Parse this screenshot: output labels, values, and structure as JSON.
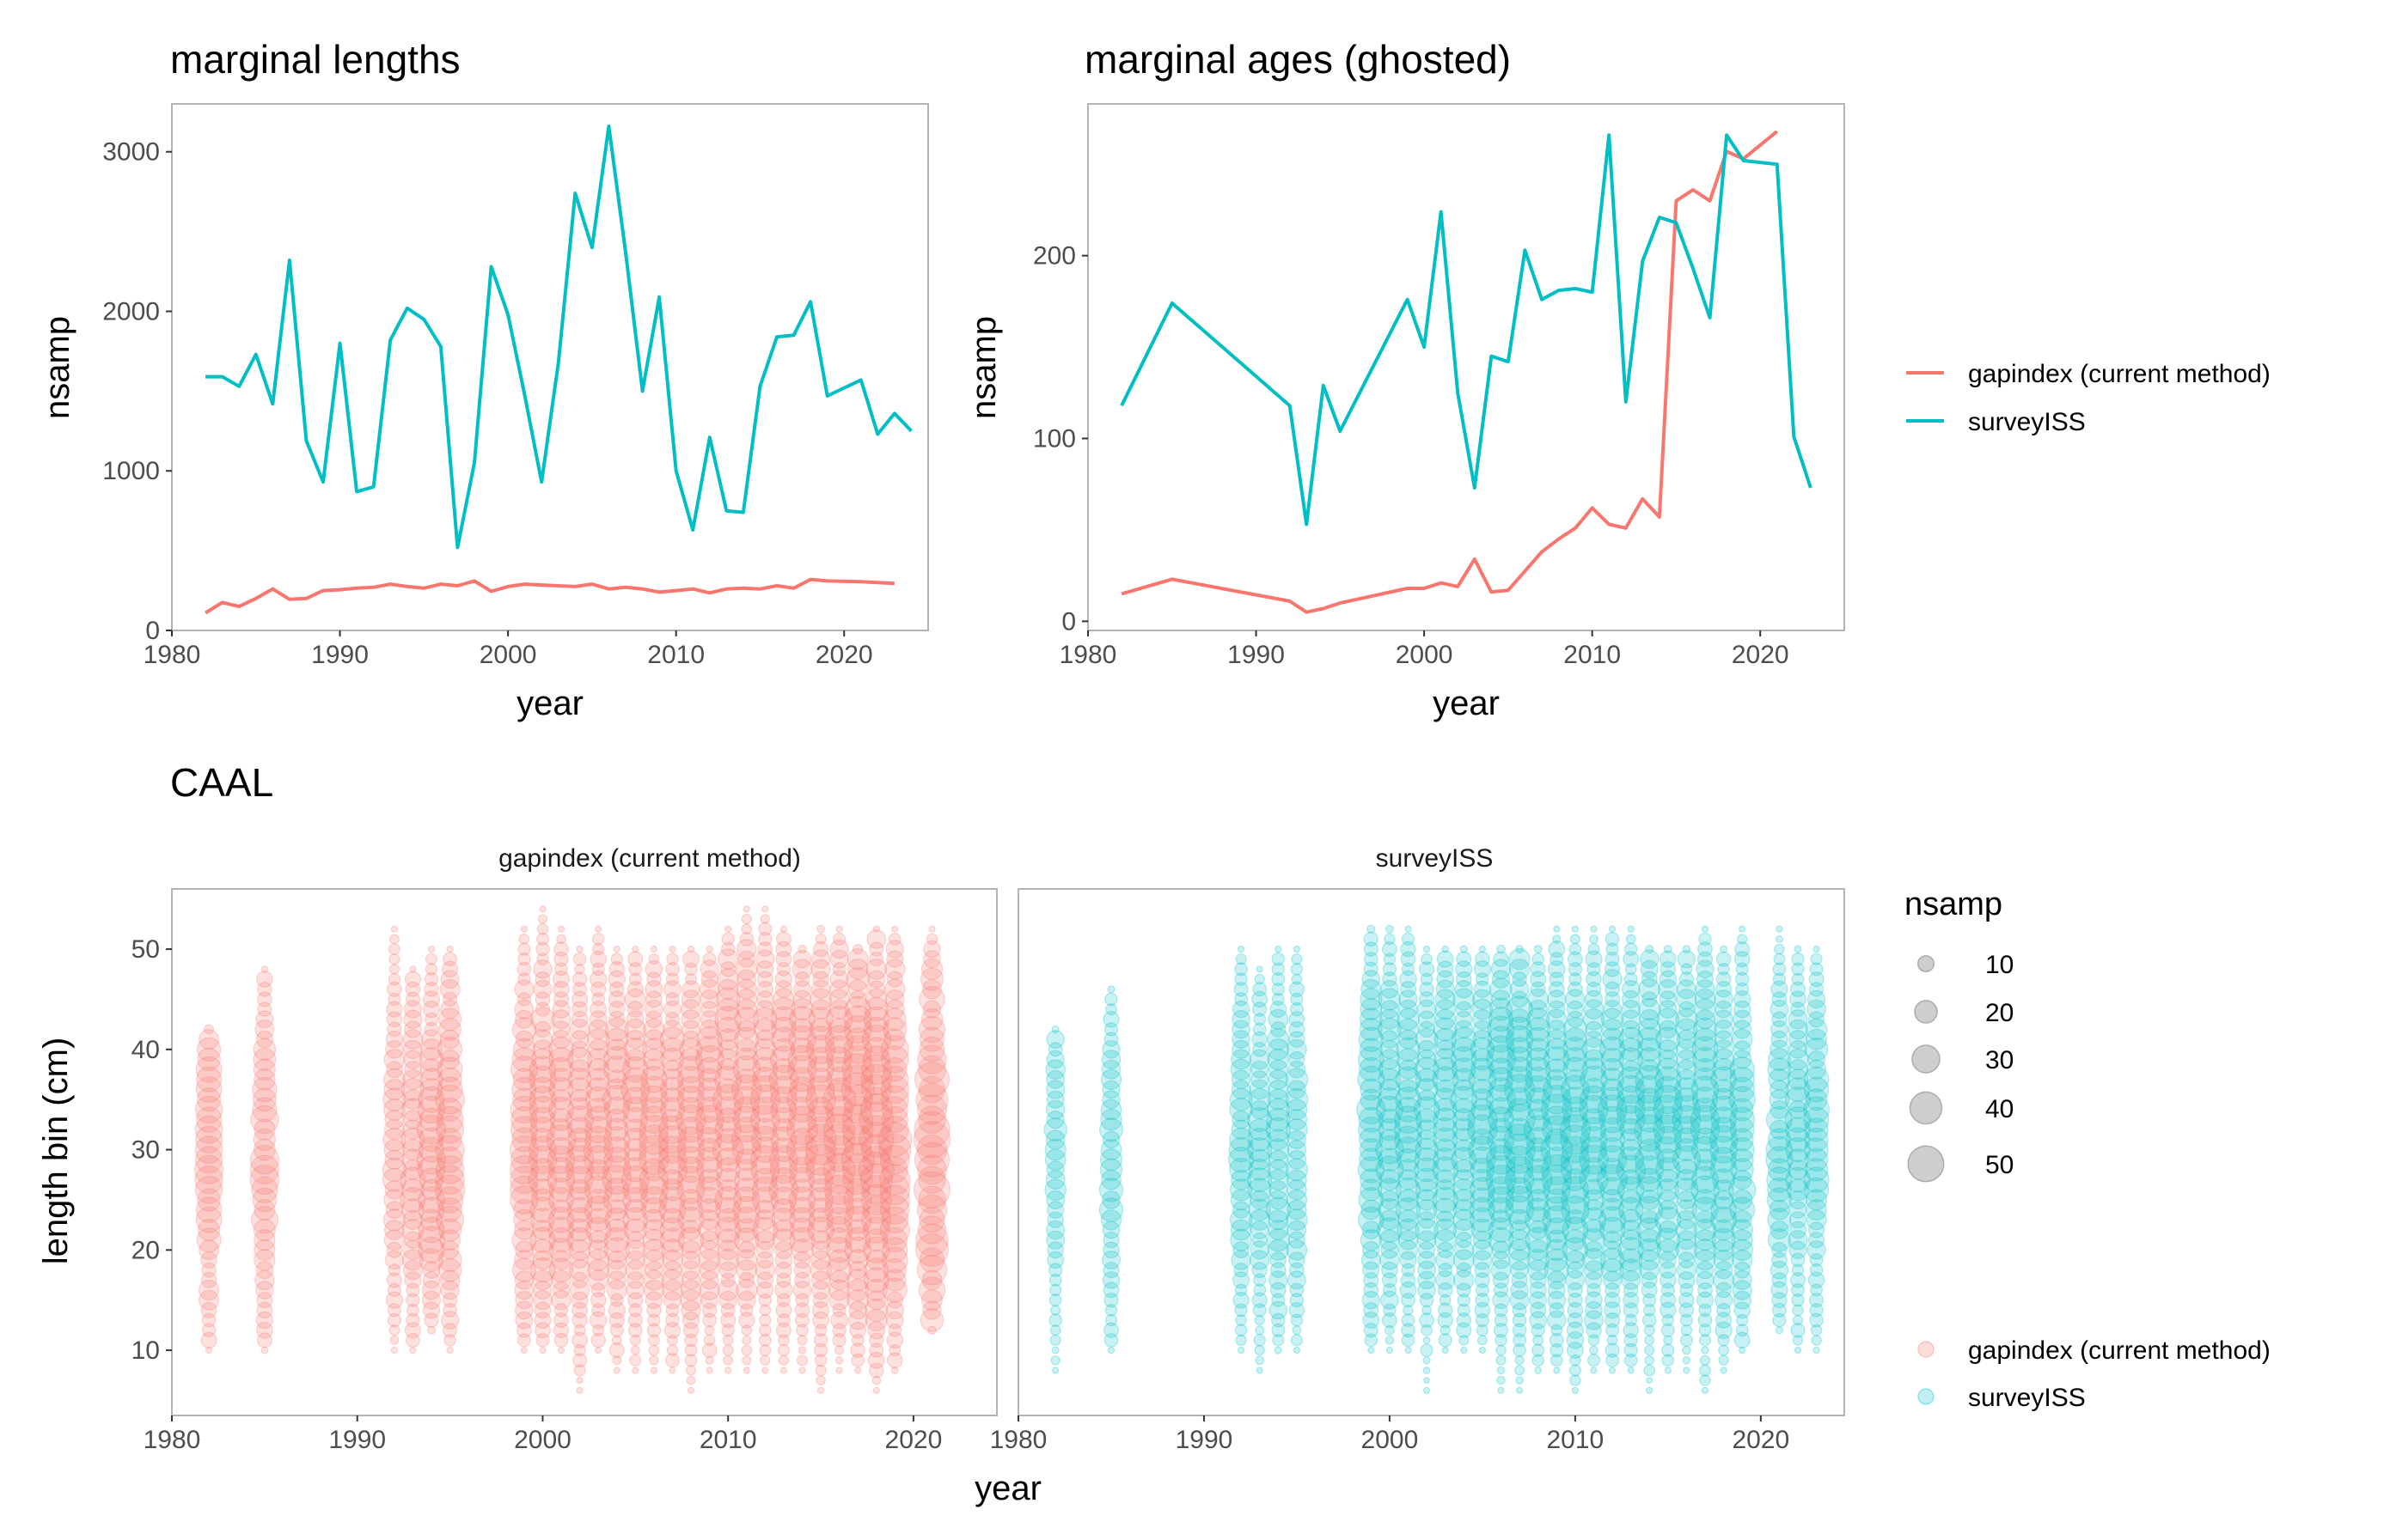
{
  "colors": {
    "gapindex": "#F8766D",
    "surveyISS": "#00BFC4"
  },
  "legend_lines": {
    "items": [
      {
        "key": "gapindex",
        "label": "gapindex (current method)"
      },
      {
        "key": "surveyISS",
        "label": "surveyISS"
      }
    ]
  },
  "legend_points": {
    "items": [
      {
        "key": "gapindex",
        "label": "gapindex (current method)"
      },
      {
        "key": "surveyISS",
        "label": "surveyISS"
      }
    ]
  },
  "legend_size": {
    "title": "nsamp",
    "levels": [
      10,
      20,
      30,
      40,
      50
    ]
  },
  "chart_data": [
    {
      "type": "line",
      "title": "marginal lengths",
      "xlabel": "year",
      "ylabel": "nsamp",
      "xlim": [
        1980,
        2025
      ],
      "ylim": [
        0,
        3300
      ],
      "xticks": [
        1980,
        1990,
        2000,
        2010,
        2020
      ],
      "yticks": [
        0,
        1000,
        2000,
        3000
      ],
      "series": [
        {
          "name": "gapindex (current method)",
          "key": "gapindex",
          "x": [
            1982,
            1983,
            1984,
            1985,
            1986,
            1987,
            1988,
            1989,
            1990,
            1991,
            1992,
            1993,
            1994,
            1995,
            1996,
            1997,
            1998,
            1999,
            2000,
            2001,
            2002,
            2003,
            2004,
            2005,
            2006,
            2007,
            2008,
            2009,
            2010,
            2011,
            2012,
            2013,
            2014,
            2015,
            2016,
            2017,
            2018,
            2019,
            2021,
            2022,
            2023
          ],
          "y": [
            110,
            175,
            150,
            200,
            260,
            195,
            200,
            250,
            255,
            265,
            270,
            290,
            275,
            265,
            290,
            280,
            310,
            245,
            275,
            290,
            285,
            280,
            275,
            290,
            260,
            270,
            260,
            240,
            250,
            260,
            235,
            260,
            265,
            260,
            280,
            265,
            320,
            310,
            305,
            300,
            295
          ]
        },
        {
          "name": "surveyISS",
          "key": "surveyISS",
          "x": [
            1982,
            1983,
            1984,
            1985,
            1986,
            1987,
            1988,
            1989,
            1990,
            1991,
            1992,
            1993,
            1994,
            1995,
            1996,
            1997,
            1998,
            1999,
            2000,
            2001,
            2002,
            2003,
            2004,
            2005,
            2006,
            2007,
            2008,
            2009,
            2010,
            2011,
            2012,
            2013,
            2014,
            2015,
            2016,
            2017,
            2018,
            2019,
            2021,
            2022,
            2023,
            2024
          ],
          "y": [
            1590,
            1590,
            1530,
            1730,
            1420,
            2320,
            1190,
            930,
            1800,
            870,
            900,
            1820,
            2020,
            1950,
            1780,
            520,
            1050,
            2280,
            1980,
            1470,
            930,
            1680,
            2740,
            2400,
            3160,
            2370,
            1500,
            2090,
            1000,
            630,
            1210,
            750,
            740,
            1530,
            1840,
            1850,
            2060,
            1470,
            1570,
            1230,
            1360,
            1250
          ]
        }
      ]
    },
    {
      "type": "line",
      "title": "marginal ages (ghosted)",
      "xlabel": "year",
      "ylabel": "nsamp",
      "xlim": [
        1980,
        2025
      ],
      "ylim": [
        -5,
        283
      ],
      "xticks": [
        1980,
        1990,
        2000,
        2010,
        2020
      ],
      "yticks": [
        0,
        100,
        200
      ],
      "series": [
        {
          "name": "gapindex (current method)",
          "key": "gapindex",
          "x": [
            1982,
            1985,
            1992,
            1993,
            1994,
            1995,
            1999,
            2000,
            2001,
            2002,
            2003,
            2004,
            2005,
            2007,
            2008,
            2009,
            2010,
            2011,
            2012,
            2013,
            2014,
            2015,
            2016,
            2017,
            2018,
            2019,
            2021
          ],
          "y": [
            15,
            23,
            11,
            5,
            7,
            10,
            18,
            18,
            21,
            19,
            34,
            16,
            17,
            38,
            45,
            51,
            62,
            53,
            51,
            67,
            57,
            230,
            236,
            230,
            257,
            253,
            268
          ]
        },
        {
          "name": "surveyISS",
          "key": "surveyISS",
          "x": [
            1982,
            1985,
            1992,
            1993,
            1994,
            1995,
            1999,
            2000,
            2001,
            2002,
            2003,
            2004,
            2005,
            2006,
            2007,
            2008,
            2009,
            2010,
            2011,
            2012,
            2013,
            2014,
            2015,
            2016,
            2017,
            2018,
            2019,
            2021,
            2022,
            2023
          ],
          "y": [
            118,
            174,
            118,
            53,
            129,
            104,
            176,
            150,
            224,
            125,
            73,
            145,
            142,
            203,
            176,
            181,
            182,
            180,
            266,
            120,
            197,
            221,
            218,
            193,
            166,
            266,
            252,
            250,
            101,
            73
          ]
        }
      ]
    },
    {
      "type": "scatter",
      "title": "CAAL",
      "xlabel": "year",
      "ylabel": "length bin (cm)",
      "xlim": [
        1980,
        2024.5
      ],
      "ylim": [
        3.5,
        56
      ],
      "xticks": [
        1980,
        1990,
        2000,
        2010,
        2020
      ],
      "yticks": [
        10,
        20,
        30,
        40,
        50
      ],
      "size_variable": "nsamp",
      "facets": [
        {
          "name": "gapindex (current method)",
          "key": "gapindex",
          "columns": [
            {
              "year": 1982,
              "lmin": 10,
              "lmax": 42,
              "peak": 30,
              "max": 28
            },
            {
              "year": 1985,
              "lmin": 10,
              "lmax": 48,
              "peak": 28,
              "max": 30
            },
            {
              "year": 1992,
              "lmin": 10,
              "lmax": 52,
              "peak": 30,
              "max": 20
            },
            {
              "year": 1993,
              "lmin": 10,
              "lmax": 48,
              "peak": 30,
              "max": 24
            },
            {
              "year": 1994,
              "lmin": 12,
              "lmax": 50,
              "peak": 28,
              "max": 30
            },
            {
              "year": 1995,
              "lmin": 10,
              "lmax": 50,
              "peak": 30,
              "max": 32
            },
            {
              "year": 1999,
              "lmin": 10,
              "lmax": 52,
              "peak": 30,
              "max": 30
            },
            {
              "year": 2000,
              "lmin": 10,
              "lmax": 54,
              "peak": 30,
              "max": 32
            },
            {
              "year": 2001,
              "lmin": 10,
              "lmax": 52,
              "peak": 30,
              "max": 30
            },
            {
              "year": 2002,
              "lmin": 6,
              "lmax": 50,
              "peak": 30,
              "max": 28
            },
            {
              "year": 2003,
              "lmin": 10,
              "lmax": 52,
              "peak": 30,
              "max": 30
            },
            {
              "year": 2004,
              "lmin": 8,
              "lmax": 50,
              "peak": 30,
              "max": 32
            },
            {
              "year": 2005,
              "lmin": 8,
              "lmax": 50,
              "peak": 32,
              "max": 30
            },
            {
              "year": 2006,
              "lmin": 8,
              "lmax": 50,
              "peak": 30,
              "max": 30
            },
            {
              "year": 2007,
              "lmin": 8,
              "lmax": 50,
              "peak": 30,
              "max": 30
            },
            {
              "year": 2008,
              "lmin": 6,
              "lmax": 50,
              "peak": 30,
              "max": 32
            },
            {
              "year": 2009,
              "lmin": 8,
              "lmax": 50,
              "peak": 32,
              "max": 32
            },
            {
              "year": 2010,
              "lmin": 8,
              "lmax": 52,
              "peak": 32,
              "max": 34
            },
            {
              "year": 2011,
              "lmin": 8,
              "lmax": 54,
              "peak": 32,
              "max": 34
            },
            {
              "year": 2012,
              "lmin": 8,
              "lmax": 54,
              "peak": 32,
              "max": 32
            },
            {
              "year": 2013,
              "lmin": 8,
              "lmax": 52,
              "peak": 32,
              "max": 34
            },
            {
              "year": 2014,
              "lmin": 8,
              "lmax": 50,
              "peak": 32,
              "max": 34
            },
            {
              "year": 2015,
              "lmin": 6,
              "lmax": 52,
              "peak": 32,
              "max": 36
            },
            {
              "year": 2016,
              "lmin": 8,
              "lmax": 52,
              "peak": 32,
              "max": 40
            },
            {
              "year": 2017,
              "lmin": 8,
              "lmax": 50,
              "peak": 32,
              "max": 42
            },
            {
              "year": 2018,
              "lmin": 6,
              "lmax": 52,
              "peak": 30,
              "max": 44
            },
            {
              "year": 2019,
              "lmin": 8,
              "lmax": 52,
              "peak": 30,
              "max": 40
            },
            {
              "year": 2021,
              "lmin": 12,
              "lmax": 52,
              "peak": 30,
              "max": 52
            }
          ]
        },
        {
          "name": "surveyISS",
          "key": "surveyISS",
          "columns": [
            {
              "year": 1982,
              "lmin": 8,
              "lmax": 42,
              "peak": 30,
              "max": 18
            },
            {
              "year": 1985,
              "lmin": 10,
              "lmax": 46,
              "peak": 28,
              "max": 20
            },
            {
              "year": 1992,
              "lmin": 10,
              "lmax": 50,
              "peak": 30,
              "max": 22
            },
            {
              "year": 1993,
              "lmin": 8,
              "lmax": 48,
              "peak": 30,
              "max": 20
            },
            {
              "year": 1994,
              "lmin": 10,
              "lmax": 50,
              "peak": 30,
              "max": 24
            },
            {
              "year": 1995,
              "lmin": 10,
              "lmax": 50,
              "peak": 30,
              "max": 22
            },
            {
              "year": 1999,
              "lmin": 10,
              "lmax": 52,
              "peak": 32,
              "max": 30
            },
            {
              "year": 2000,
              "lmin": 10,
              "lmax": 52,
              "peak": 32,
              "max": 28
            },
            {
              "year": 2001,
              "lmin": 10,
              "lmax": 52,
              "peak": 32,
              "max": 26
            },
            {
              "year": 2002,
              "lmin": 6,
              "lmax": 50,
              "peak": 32,
              "max": 24
            },
            {
              "year": 2003,
              "lmin": 10,
              "lmax": 50,
              "peak": 32,
              "max": 26
            },
            {
              "year": 2004,
              "lmin": 10,
              "lmax": 50,
              "peak": 32,
              "max": 28
            },
            {
              "year": 2005,
              "lmin": 10,
              "lmax": 50,
              "peak": 32,
              "max": 30
            },
            {
              "year": 2006,
              "lmin": 6,
              "lmax": 50,
              "peak": 32,
              "max": 34
            },
            {
              "year": 2007,
              "lmin": 6,
              "lmax": 50,
              "peak": 32,
              "max": 36
            },
            {
              "year": 2008,
              "lmin": 8,
              "lmax": 50,
              "peak": 30,
              "max": 32
            },
            {
              "year": 2009,
              "lmin": 8,
              "lmax": 52,
              "peak": 30,
              "max": 34
            },
            {
              "year": 2010,
              "lmin": 6,
              "lmax": 52,
              "peak": 30,
              "max": 32
            },
            {
              "year": 2011,
              "lmin": 8,
              "lmax": 52,
              "peak": 30,
              "max": 30
            },
            {
              "year": 2012,
              "lmin": 8,
              "lmax": 52,
              "peak": 30,
              "max": 32
            },
            {
              "year": 2013,
              "lmin": 8,
              "lmax": 52,
              "peak": 30,
              "max": 30
            },
            {
              "year": 2014,
              "lmin": 6,
              "lmax": 50,
              "peak": 32,
              "max": 32
            },
            {
              "year": 2015,
              "lmin": 8,
              "lmax": 50,
              "peak": 32,
              "max": 30
            },
            {
              "year": 2016,
              "lmin": 8,
              "lmax": 50,
              "peak": 32,
              "max": 28
            },
            {
              "year": 2017,
              "lmin": 6,
              "lmax": 52,
              "peak": 32,
              "max": 30
            },
            {
              "year": 2018,
              "lmin": 8,
              "lmax": 50,
              "peak": 30,
              "max": 28
            },
            {
              "year": 2019,
              "lmin": 10,
              "lmax": 52,
              "peak": 30,
              "max": 26
            },
            {
              "year": 2021,
              "lmin": 12,
              "lmax": 52,
              "peak": 30,
              "max": 24
            },
            {
              "year": 2022,
              "lmin": 10,
              "lmax": 50,
              "peak": 32,
              "max": 22
            },
            {
              "year": 2023,
              "lmin": 10,
              "lmax": 50,
              "peak": 32,
              "max": 24
            }
          ]
        }
      ]
    }
  ]
}
